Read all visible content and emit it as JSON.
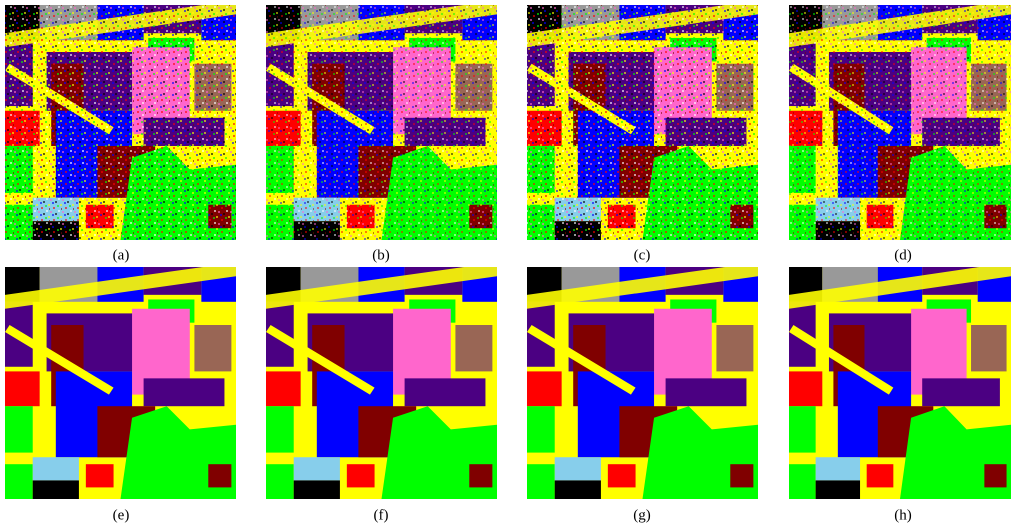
{
  "figure": {
    "captions": [
      "(a)",
      "(b)",
      "(c)",
      "(d)",
      "(e)",
      "(f)",
      "(g)",
      "(h)"
    ]
  }
}
